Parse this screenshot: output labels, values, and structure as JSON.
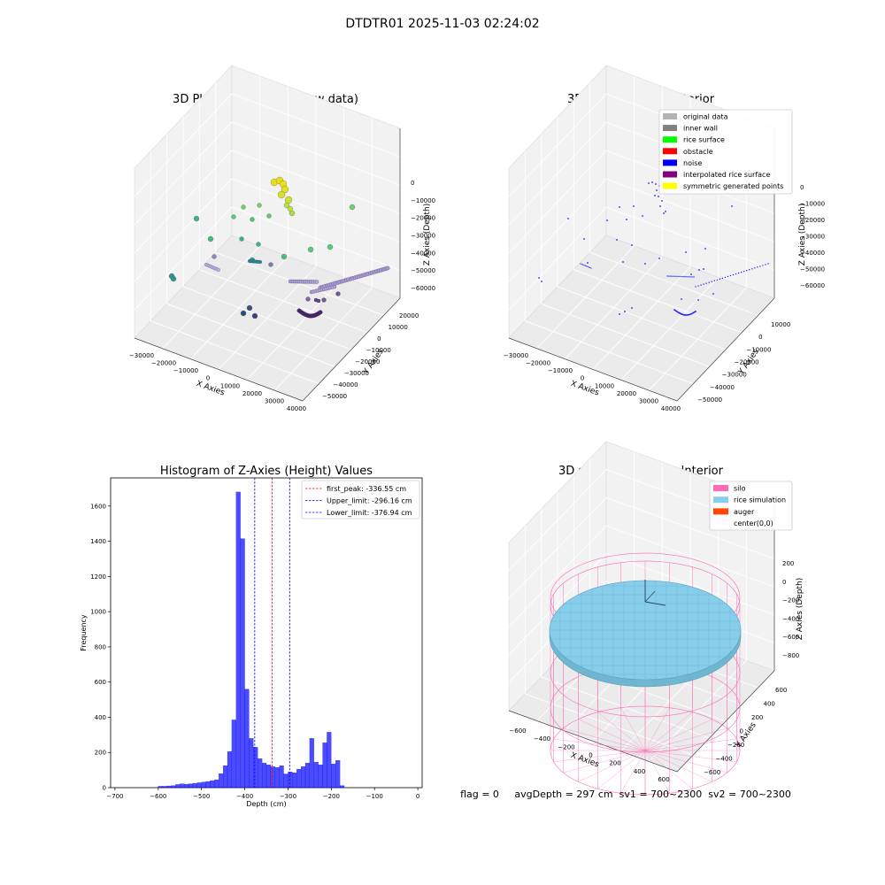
{
  "suptitle": "DTDTR01 2025-11-03 02:24:02",
  "panel_raw": {
    "title": "3D Plot of Silo Interior(row data)",
    "xlabel": "X Axies",
    "ylabel": "Y Axies",
    "zlabel": "Z Axies (Depth)",
    "x_ticks": [
      "−30000",
      "−20000",
      "−10000",
      "0",
      "10000",
      "20000",
      "30000",
      "40000"
    ],
    "y_ticks": [
      "20000",
      "10000",
      "0",
      "−10000",
      "−20000",
      "−30000",
      "−40000",
      "−50000"
    ],
    "z_ticks": [
      "0",
      "−10000",
      "−20000",
      "−30000",
      "−40000",
      "−50000",
      "−60000"
    ]
  },
  "panel_classify": {
    "title": "3D classify of Silo Interior",
    "xlabel": "X Axies",
    "ylabel": "Y Axies",
    "zlabel": "Z Axies (Depth)",
    "x_ticks": [
      "−30000",
      "−20000",
      "−10000",
      "0",
      "10000",
      "20000",
      "30000",
      "40000"
    ],
    "y_ticks": [
      "10000",
      "0",
      "−10000",
      "−20000",
      "−30000",
      "−40000",
      "−50000"
    ],
    "z_ticks": [
      "0",
      "−10000",
      "−20000",
      "−30000",
      "−40000",
      "−50000",
      "−60000"
    ],
    "legend": [
      {
        "label": "original data",
        "color": "#b3b3b3"
      },
      {
        "label": "inner wall",
        "color": "#808080"
      },
      {
        "label": "rice surface",
        "color": "#00ff00"
      },
      {
        "label": "obstacle",
        "color": "#ff0000"
      },
      {
        "label": "noise",
        "color": "#0000ff"
      },
      {
        "label": "interpolated rice surface",
        "color": "#800080"
      },
      {
        "label": "symmetric generated points",
        "color": "#ffff00"
      }
    ]
  },
  "panel_sim": {
    "title": "3D simulation of Silo Interior",
    "xlabel": "X Axies",
    "ylabel": "Y Axies",
    "zlabel": "Z Axies (Depth)",
    "x_ticks": [
      "−600",
      "−400",
      "−200",
      "0",
      "200",
      "400",
      "600"
    ],
    "y_ticks": [
      "600",
      "400",
      "200",
      "0",
      "−200",
      "−400",
      "−600"
    ],
    "z_ticks": [
      "200",
      "0",
      "−200",
      "−400",
      "−600",
      "−800"
    ],
    "legend": [
      {
        "label": "silo",
        "color": "#ff69b4"
      },
      {
        "label": "rice simulation",
        "color": "#87ceeb"
      },
      {
        "label": "auger",
        "color": "#ff4500"
      },
      {
        "label": "center(0,0)",
        "color": "#ffffff"
      }
    ]
  },
  "status_line": "flag = 0     avgDepth = 297 cm  sv1 = 700~2300  sv2 = 700~2300",
  "chart_data": {
    "type": "bar",
    "title": "Histogram of Z-Axies (Height) Values",
    "xlabel": "Depth (cm)",
    "ylabel": "Frequency",
    "xlim": [
      -710,
      10
    ],
    "ylim": [
      0,
      1760
    ],
    "x_ticks": [
      -700,
      -600,
      -500,
      -400,
      -300,
      -200,
      -100,
      0
    ],
    "y_ticks": [
      0,
      200,
      400,
      600,
      800,
      1000,
      1200,
      1400,
      1600
    ],
    "bin_start": -600,
    "bin_width": 10,
    "values": [
      8,
      8,
      10,
      12,
      18,
      22,
      20,
      22,
      25,
      28,
      32,
      35,
      40,
      45,
      80,
      125,
      205,
      385,
      1680,
      1415,
      560,
      280,
      230,
      165,
      140,
      130,
      120,
      115,
      125,
      78,
      90,
      85,
      105,
      120,
      140,
      280,
      145,
      130,
      255,
      315,
      135,
      155,
      12
    ],
    "vlines": [
      {
        "x": -336.55,
        "color": "#ff0000",
        "label": "first_peak: -336.55 cm"
      },
      {
        "x": -296.16,
        "color": "#0000ff",
        "label": "Upper_limit: -296.16 cm"
      },
      {
        "x": -376.94,
        "color": "#0000ff",
        "label": "Lower_limit: -376.94 cm"
      }
    ],
    "legend_position": "upper-right"
  }
}
